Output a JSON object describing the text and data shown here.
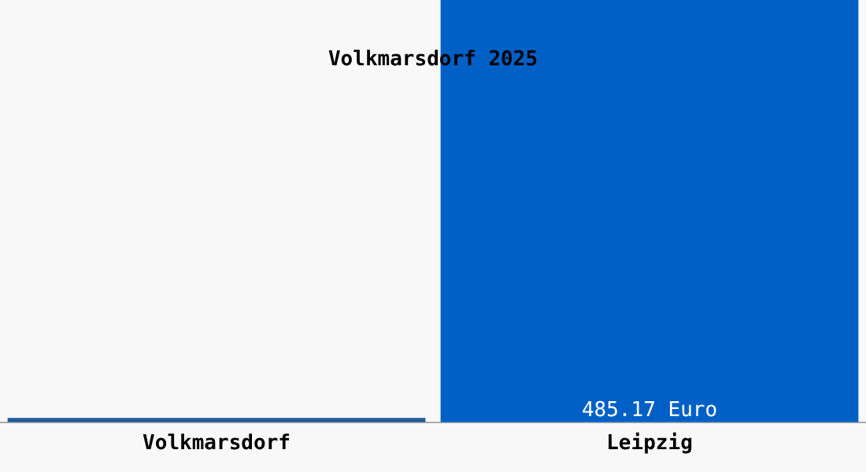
{
  "chart_data": {
    "type": "bar",
    "title": "Volkmarsdorf 2025",
    "categories": [
      "Volkmarsdorf",
      "Leipzig"
    ],
    "values": [
      5,
      485.17
    ],
    "colors": [
      "#1f5c99",
      "#0060c6"
    ],
    "value_labels": [
      null,
      "485.17 Euro"
    ],
    "grid": false,
    "legend": false
  }
}
